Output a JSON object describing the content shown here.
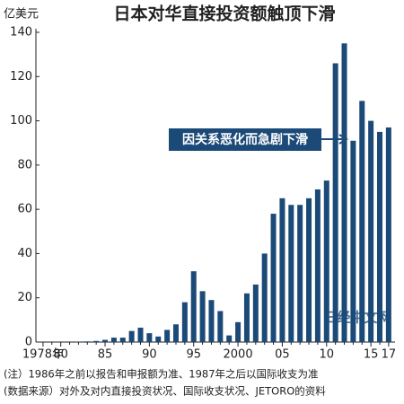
{
  "chart_data": {
    "type": "bar",
    "title": "日本对华直接投资额触顶下滑",
    "y_label": "亿美元",
    "categories": [
      "1978年",
      null,
      "80",
      null,
      null,
      null,
      null,
      "85",
      null,
      null,
      null,
      null,
      "90",
      null,
      null,
      null,
      null,
      "95",
      null,
      null,
      null,
      null,
      "2000",
      null,
      null,
      null,
      null,
      "05",
      null,
      null,
      null,
      null,
      "10",
      null,
      null,
      null,
      null,
      "15",
      null,
      "17"
    ],
    "values": [
      0,
      0,
      0,
      0,
      0.1,
      0.3,
      0.5,
      1,
      2,
      2,
      5,
      6.5,
      4,
      2.5,
      5.5,
      8,
      18,
      32,
      23,
      19,
      14,
      3,
      9,
      22,
      26,
      40,
      58,
      65,
      62,
      62,
      65,
      69,
      73,
      126,
      135,
      91,
      109,
      100,
      95,
      97
    ],
    "color": "#1c4a78",
    "ylim": [
      0,
      140
    ],
    "yticks": [
      0,
      20,
      40,
      60,
      80,
      100,
      120,
      140
    ],
    "annotation": "因关系恶化而急剧下滑",
    "watermark": "日经中文网",
    "notes": [
      "(注）1986年之前以报告和申报额为准、1987年之后以国际收支为准",
      "(数据来源）对外及对内直接投资状况、国际收支状况、JETORO的资料"
    ]
  }
}
